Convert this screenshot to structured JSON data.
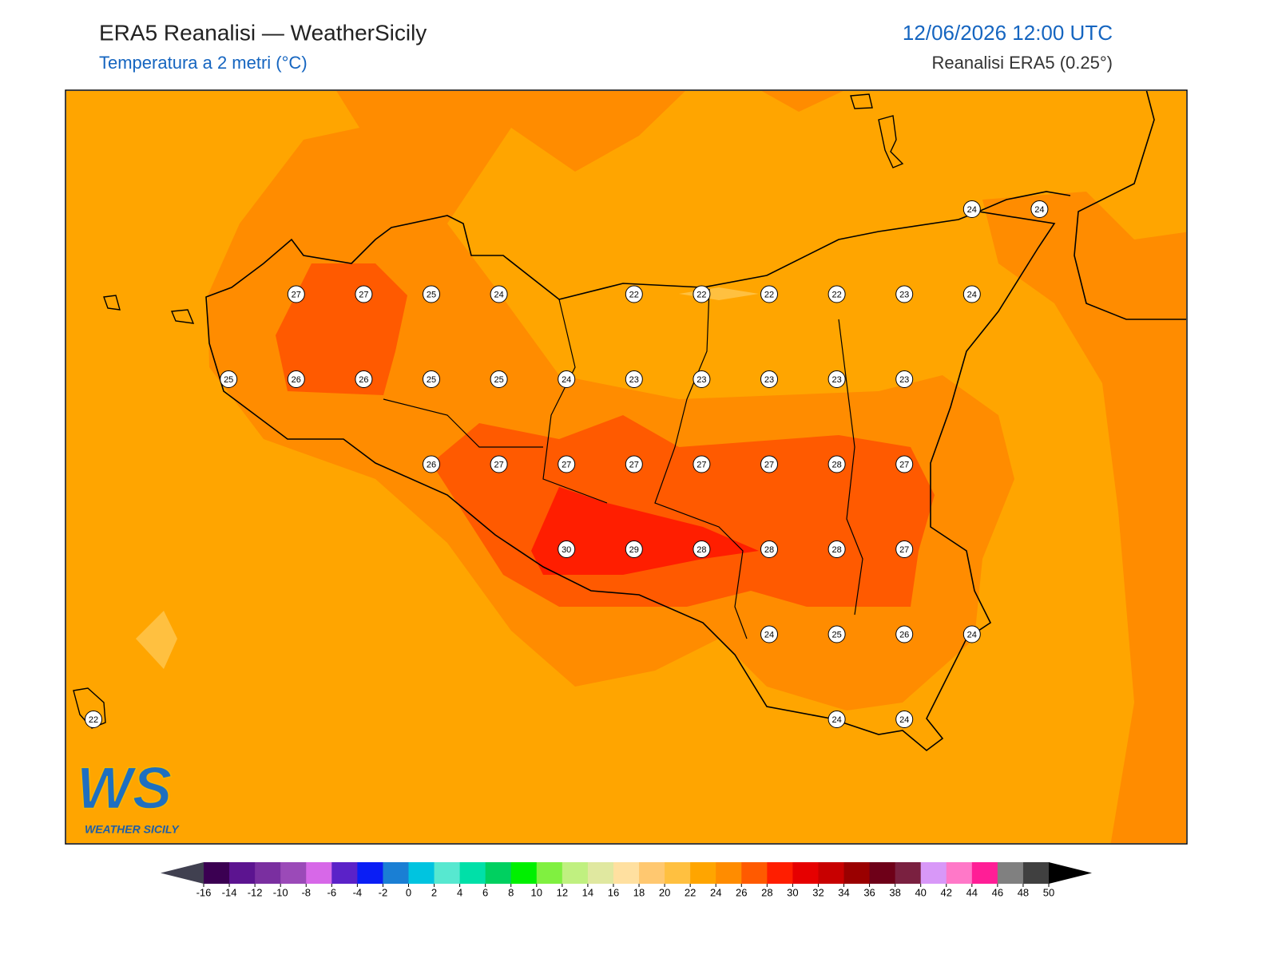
{
  "header": {
    "title": "ERA5 Reanalisi — WeatherSicily",
    "subtitle": "Temperatura a 2 metri (°C)",
    "datetime": "12/06/2026 12:00 UTC",
    "source": "Reanalisi ERA5 (0.25°)"
  },
  "logo": {
    "mark": "WS",
    "name": "WEATHER SICILY"
  },
  "grid_values": [
    [
      null,
      null,
      null,
      null,
      null,
      null,
      null,
      null,
      null,
      null,
      null,
      null,
      null,
      24,
      24
    ],
    [
      null,
      null,
      null,
      27,
      27,
      25,
      24,
      null,
      22,
      22,
      22,
      22,
      23,
      24,
      null
    ],
    [
      null,
      null,
      25,
      26,
      26,
      25,
      25,
      24,
      23,
      23,
      23,
      23,
      23,
      null,
      null
    ],
    [
      null,
      null,
      null,
      null,
      null,
      26,
      27,
      27,
      27,
      27,
      27,
      28,
      27,
      null,
      null
    ],
    [
      null,
      null,
      null,
      null,
      null,
      null,
      null,
      30,
      29,
      28,
      28,
      28,
      27,
      null,
      null
    ],
    [
      null,
      null,
      null,
      null,
      null,
      null,
      null,
      null,
      null,
      null,
      24,
      25,
      26,
      24,
      null
    ],
    [
      22,
      null,
      null,
      null,
      null,
      null,
      null,
      null,
      null,
      null,
      null,
      24,
      24,
      null,
      null
    ]
  ],
  "colorbar": {
    "ticks": [
      -16,
      -14,
      -12,
      -10,
      -8,
      -6,
      -4,
      -2,
      0,
      2,
      4,
      6,
      8,
      10,
      12,
      14,
      16,
      18,
      20,
      22,
      24,
      26,
      28,
      30,
      32,
      34,
      36,
      38,
      40,
      42,
      44,
      46,
      48,
      50
    ],
    "colors": [
      "#3b0052",
      "#5c1490",
      "#7a2fa0",
      "#9b4ab8",
      "#d768e8",
      "#5b22c8",
      "#0a1ef5",
      "#1a7fd4",
      "#00c4e0",
      "#57e8d0",
      "#00e0a8",
      "#00d060",
      "#00f000",
      "#80f040",
      "#c0f080",
      "#e0e8a0",
      "#ffe0a0",
      "#ffc870",
      "#ffc040",
      "#ffa500",
      "#ff8c00",
      "#ff5a00",
      "#ff1e00",
      "#e60000",
      "#c80000",
      "#9a0000",
      "#6e0018",
      "#7a2040",
      "#d898f8",
      "#ff78c8",
      "#ff1e96",
      "#808080",
      "#404040"
    ],
    "under_color": "#404050",
    "over_color": "#000000"
  }
}
